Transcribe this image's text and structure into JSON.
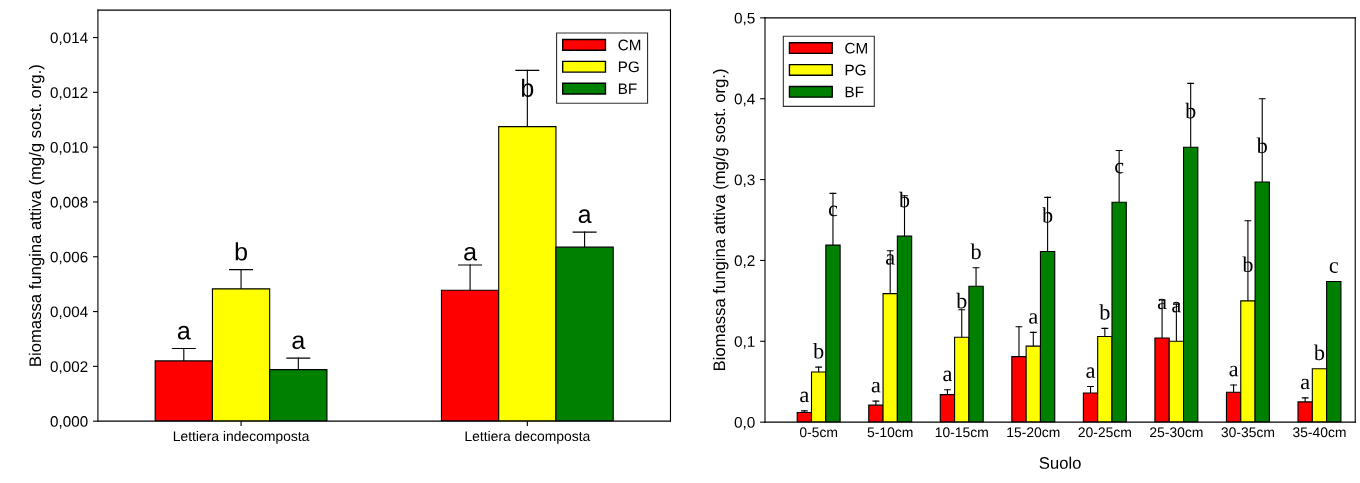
{
  "chart_data": [
    {
      "type": "bar",
      "ylabel": "Biomassa fungina attiva (mg/g sost. org.)",
      "categories": [
        "Lettiera indecomposta",
        "Lettiera decomposta"
      ],
      "ylim": [
        0,
        0.015
      ],
      "yticks": [
        {
          "value": 0,
          "label": "0,000"
        },
        {
          "value": 0.002,
          "label": "0,002"
        },
        {
          "value": 0.004,
          "label": "0,004"
        },
        {
          "value": 0.006,
          "label": "0,006"
        },
        {
          "value": 0.008,
          "label": "0,008"
        },
        {
          "value": 0.01,
          "label": "0,010"
        },
        {
          "value": 0.012,
          "label": "0,012"
        },
        {
          "value": 0.014,
          "label": "0,014"
        }
      ],
      "legend": "top right",
      "grid": false,
      "series": [
        {
          "name": "CM",
          "color": "#ff0000",
          "values": [
            0.0022,
            0.00478
          ],
          "errors": [
            [
              0.0022,
              0.00265
            ],
            [
              0.00478,
              0.0057
            ]
          ],
          "value_labels": [
            "a",
            "a"
          ]
        },
        {
          "name": "PG",
          "color": "#ffff00",
          "values": [
            0.00483,
            0.01075
          ],
          "errors": [
            [
              0.00483,
              0.00553
            ],
            [
              0.01075,
              0.0128
            ]
          ],
          "value_labels": [
            "b",
            "b"
          ]
        },
        {
          "name": "BF",
          "color": "#008000",
          "values": [
            0.00188,
            0.00635
          ],
          "errors": [
            [
              0.00188,
              0.0023
            ],
            [
              0.00635,
              0.0069
            ]
          ],
          "value_labels": [
            "a",
            "a"
          ]
        }
      ]
    },
    {
      "type": "bar",
      "xlabel": "Suolo",
      "ylabel": "Biomassa fungina attiva (mg/g sost. org.)",
      "categories": [
        "0-5cm",
        "5-10cm",
        "10-15cm",
        "15-20cm",
        "20-25cm",
        "25-30cm",
        "30-35cm",
        "35-40cm"
      ],
      "ylim": [
        0,
        0.5
      ],
      "yticks": [
        {
          "value": 0,
          "label": "0,0"
        },
        {
          "value": 0.1,
          "label": "0,1"
        },
        {
          "value": 0.2,
          "label": "0,2"
        },
        {
          "value": 0.3,
          "label": "0,3"
        },
        {
          "value": 0.4,
          "label": "0,4"
        },
        {
          "value": 0.5,
          "label": "0,5"
        }
      ],
      "legend": "top left",
      "grid": false,
      "series": [
        {
          "name": "CM",
          "color": "#ff0000",
          "values": [
            0.012,
            0.021,
            0.034,
            0.081,
            0.036,
            0.104,
            0.037,
            0.025
          ],
          "errors": [
            [
              0.012,
              0.014
            ],
            [
              0.021,
              0.026
            ],
            [
              0.034,
              0.04
            ],
            [
              0.081,
              0.118
            ],
            [
              0.036,
              0.044
            ],
            [
              0.104,
              0.151
            ],
            [
              0.037,
              0.046
            ],
            [
              0.025,
              0.03
            ]
          ],
          "value_labels": [
            "a",
            "a",
            "a",
            null,
            "a",
            "a",
            "a",
            "a"
          ]
        },
        {
          "name": "PG",
          "color": "#ffff00",
          "values": [
            0.062,
            0.159,
            0.105,
            0.094,
            0.106,
            0.1,
            0.15,
            0.066
          ],
          "errors": [
            [
              0.062,
              0.068
            ],
            [
              0.159,
              0.212
            ],
            [
              0.105,
              0.139
            ],
            [
              0.094,
              0.111
            ],
            [
              0.106,
              0.116
            ],
            [
              0.1,
              0.146
            ],
            [
              0.15,
              0.249
            ],
            null
          ],
          "value_labels": [
            "b",
            "a",
            "b",
            "a",
            "b",
            "a",
            "b",
            "b"
          ]
        },
        {
          "name": "BF",
          "color": "#008000",
          "values": [
            0.219,
            0.23,
            0.168,
            0.211,
            0.272,
            0.34,
            0.297,
            0.174
          ],
          "errors": [
            [
              0.219,
              0.283
            ],
            [
              0.23,
              0.28
            ],
            [
              0.168,
              0.191
            ],
            [
              0.211,
              0.278
            ],
            [
              0.272,
              0.336
            ],
            [
              0.34,
              0.419
            ],
            [
              0.297,
              0.4
            ],
            null
          ],
          "value_labels": [
            "c",
            "b",
            "b",
            "b",
            "c",
            "b",
            "b",
            "c"
          ]
        }
      ]
    }
  ]
}
